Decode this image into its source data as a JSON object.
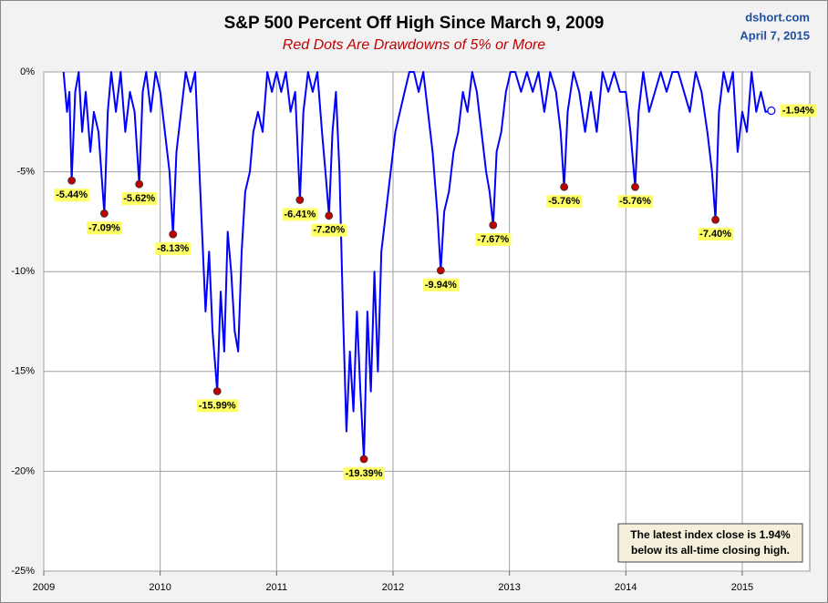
{
  "chart_data": {
    "type": "line",
    "title": "S&P 500 Percent Off High Since March 9, 2009",
    "subtitle": "Red Dots Are Drawdowns of 5% or More",
    "source": "dshort.com",
    "date": "April 7, 2015",
    "note": [
      "The latest index close is 1.94%",
      "below its all-time closing high."
    ],
    "xlim": [
      2009,
      2015.58
    ],
    "xticks": [
      2009,
      2010,
      2011,
      2012,
      2013,
      2014,
      2015
    ],
    "ylim": [
      -25,
      0
    ],
    "yticks": [
      {
        "value": 0,
        "label": "0%"
      },
      {
        "value": -5,
        "label": "-5%"
      },
      {
        "value": -10,
        "label": "-10%"
      },
      {
        "value": -15,
        "label": "-15%"
      },
      {
        "value": -20,
        "label": "-20%"
      },
      {
        "value": -25,
        "label": "-25%"
      }
    ],
    "grid": true,
    "series": [
      {
        "color": "#0000ff",
        "x": [
          2009.17,
          2009.2,
          2009.22,
          2009.24,
          2009.27,
          2009.3,
          2009.33,
          2009.36,
          2009.4,
          2009.43,
          2009.47,
          2009.52,
          2009.55,
          2009.58,
          2009.62,
          2009.66,
          2009.7,
          2009.74,
          2009.78,
          2009.82,
          2009.85,
          2009.88,
          2009.92,
          2009.96,
          2010.0,
          2010.04,
          2010.08,
          2010.11,
          2010.14,
          2010.18,
          2010.22,
          2010.26,
          2010.3,
          2010.33,
          2010.36,
          2010.39,
          2010.42,
          2010.45,
          2010.49,
          2010.52,
          2010.55,
          2010.58,
          2010.61,
          2010.64,
          2010.67,
          2010.7,
          2010.73,
          2010.77,
          2010.8,
          2010.84,
          2010.88,
          2010.92,
          2010.96,
          2011.0,
          2011.04,
          2011.08,
          2011.12,
          2011.16,
          2011.2,
          2011.23,
          2011.27,
          2011.31,
          2011.35,
          2011.39,
          2011.42,
          2011.45,
          2011.48,
          2011.51,
          2011.54,
          2011.57,
          2011.6,
          2011.63,
          2011.66,
          2011.69,
          2011.72,
          2011.75,
          2011.78,
          2011.81,
          2011.84,
          2011.87,
          2011.9,
          2011.94,
          2011.98,
          2012.02,
          2012.06,
          2012.1,
          2012.14,
          2012.18,
          2012.22,
          2012.26,
          2012.3,
          2012.34,
          2012.38,
          2012.41,
          2012.44,
          2012.48,
          2012.52,
          2012.56,
          2012.6,
          2012.64,
          2012.68,
          2012.72,
          2012.76,
          2012.8,
          2012.83,
          2012.86,
          2012.89,
          2012.93,
          2012.97,
          2013.01,
          2013.05,
          2013.1,
          2013.15,
          2013.2,
          2013.25,
          2013.3,
          2013.35,
          2013.4,
          2013.44,
          2013.47,
          2013.5,
          2013.55,
          2013.6,
          2013.65,
          2013.7,
          2013.75,
          2013.8,
          2013.85,
          2013.9,
          2013.95,
          2014.0,
          2014.04,
          2014.08,
          2014.11,
          2014.15,
          2014.2,
          2014.25,
          2014.3,
          2014.35,
          2014.4,
          2014.45,
          2014.5,
          2014.55,
          2014.6,
          2014.65,
          2014.7,
          2014.74,
          2014.77,
          2014.8,
          2014.84,
          2014.88,
          2014.92,
          2014.96,
          2015.0,
          2015.04,
          2015.08,
          2015.12,
          2015.16,
          2015.2,
          2015.25
        ],
        "values": [
          0,
          -2,
          -1,
          -5.44,
          -1,
          0,
          -3,
          -1,
          -4,
          -2,
          -3,
          -7.09,
          -2,
          0,
          -2,
          0,
          -3,
          -1,
          -2,
          -5.62,
          -1,
          0,
          -2,
          0,
          -1,
          -3,
          -5,
          -8.13,
          -4,
          -2,
          0,
          -1,
          0,
          -4,
          -8,
          -12,
          -9,
          -13,
          -15.99,
          -11,
          -14,
          -8,
          -10,
          -13,
          -14,
          -9,
          -6,
          -5,
          -3,
          -2,
          -3,
          0,
          -1,
          0,
          -1,
          0,
          -2,
          -1,
          -6.41,
          -2,
          0,
          -1,
          0,
          -3,
          -5,
          -7.2,
          -3,
          -1,
          -5,
          -12,
          -18,
          -14,
          -17,
          -12,
          -16,
          -19.39,
          -12,
          -16,
          -10,
          -15,
          -9,
          -7,
          -5,
          -3,
          -2,
          -1,
          0,
          0,
          -1,
          0,
          -2,
          -4,
          -7,
          -9.94,
          -7,
          -6,
          -4,
          -3,
          -1,
          -2,
          0,
          -1,
          -3,
          -5,
          -6,
          -7.67,
          -4,
          -3,
          -1,
          0,
          0,
          -1,
          0,
          -1,
          0,
          -2,
          0,
          -1,
          -3,
          -5.76,
          -2,
          0,
          -1,
          -3,
          -1,
          -3,
          0,
          -1,
          0,
          -1,
          -1,
          -3,
          -5.76,
          -2,
          0,
          -2,
          -1,
          0,
          -1,
          0,
          0,
          -1,
          -2,
          0,
          -1,
          -3,
          -5,
          -7.4,
          -2,
          0,
          -1,
          0,
          -4,
          -2,
          -3,
          0,
          -2,
          -1,
          -2,
          -1.94
        ]
      }
    ],
    "annotations": [
      {
        "x": 2009.24,
        "value": -5.44,
        "label": "-5.44%",
        "color": "#c00000"
      },
      {
        "x": 2009.52,
        "value": -7.09,
        "label": "-7.09%",
        "color": "#c00000"
      },
      {
        "x": 2009.82,
        "value": -5.62,
        "label": "-5.62%",
        "color": "#c00000"
      },
      {
        "x": 2010.11,
        "value": -8.13,
        "label": "-8.13%",
        "color": "#c00000"
      },
      {
        "x": 2010.49,
        "value": -15.99,
        "label": "-15.99%",
        "color": "#c00000"
      },
      {
        "x": 2011.2,
        "value": -6.41,
        "label": "-6.41%",
        "color": "#c00000"
      },
      {
        "x": 2011.45,
        "value": -7.2,
        "label": "-7.20%",
        "color": "#c00000"
      },
      {
        "x": 2011.75,
        "value": -19.39,
        "label": "-19.39%",
        "color": "#c00000"
      },
      {
        "x": 2012.41,
        "value": -9.94,
        "label": "-9.94%",
        "color": "#c00000"
      },
      {
        "x": 2012.86,
        "value": -7.67,
        "label": "-7.67%",
        "color": "#c00000"
      },
      {
        "x": 2013.47,
        "value": -5.76,
        "label": "-5.76%",
        "color": "#c00000"
      },
      {
        "x": 2014.08,
        "value": -5.76,
        "label": "-5.76%",
        "color": "#c00000"
      },
      {
        "x": 2014.77,
        "value": -7.4,
        "label": "-7.40%",
        "color": "#c00000"
      }
    ],
    "latest": {
      "x": 2015.25,
      "value": -1.94,
      "label": "-1.94%"
    }
  }
}
